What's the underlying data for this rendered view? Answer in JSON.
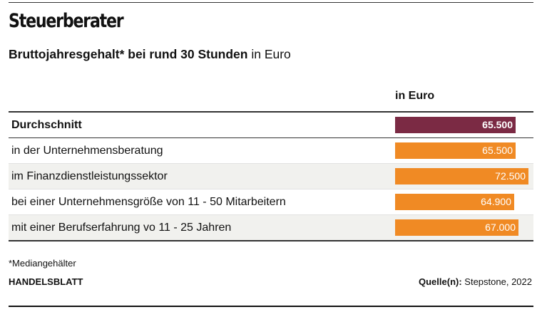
{
  "header": {
    "title": "Steuerberater",
    "subtitle_bold": "Bruttojahresgehalt* bei rund 30 Stunden",
    "subtitle_rest": "in Euro"
  },
  "chart_data": {
    "type": "bar",
    "title": "Steuerberater",
    "subtitle": "Bruttojahresgehalt* bei rund 30 Stunden in Euro",
    "column_header": "in Euro",
    "categories": [
      "Durchschnitt",
      "in der Unternehmensberatung",
      "im Finanzdienstleistungssektor",
      "bei einer Unternehmensgröße von 11 - 50 Mitarbeitern",
      "mit einer Berufserfahrung vo 11 - 25 Jahren"
    ],
    "values": [
      65500,
      65500,
      72500,
      64900,
      67000
    ],
    "value_labels": [
      "65.500",
      "65.500",
      "72.500",
      "64.900",
      "67.000"
    ],
    "highlight_index": 0,
    "colors": {
      "highlight": "#7b2a44",
      "bar": "#f08a24"
    },
    "xlim": [
      0,
      72500
    ]
  },
  "footer": {
    "footnote": "*Mediangehälter",
    "brand": "HANDELSBLATT",
    "source_label": "Quelle(n):",
    "source_value": "Stepstone, 2022"
  }
}
